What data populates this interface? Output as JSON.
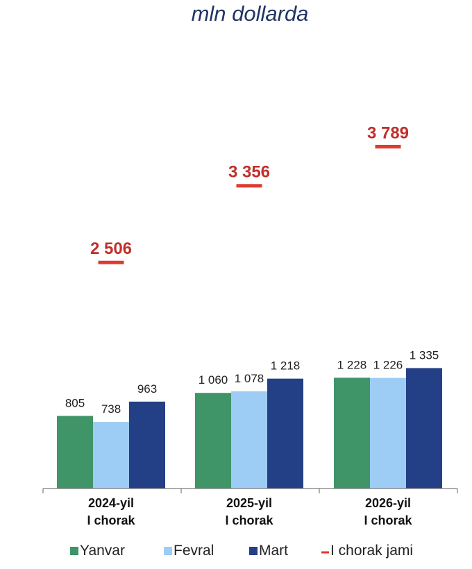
{
  "chart_data": {
    "type": "bar",
    "title": "mln dollarda",
    "categories": [
      [
        "2024-yil",
        "I chorak"
      ],
      [
        "2025-yil",
        "I chorak"
      ],
      [
        "2026-yil",
        "I chorak"
      ]
    ],
    "value_labels": [
      [
        "805",
        "738",
        "963"
      ],
      [
        "1 060",
        "1 078",
        "1 218"
      ],
      [
        "1 228",
        "1 226",
        "1 335"
      ]
    ],
    "series": [
      {
        "name": "Yanvar",
        "color": "#3f9468",
        "values": [
          805,
          1060,
          1228
        ]
      },
      {
        "name": "Fevral",
        "color": "#9dcdf5",
        "values": [
          738,
          1078,
          1226
        ]
      },
      {
        "name": "Mart",
        "color": "#233f85",
        "values": [
          963,
          1218,
          1335
        ]
      }
    ],
    "totals": {
      "name": "I chorak jami",
      "color": "#e03a2f",
      "values": [
        2506,
        3356,
        3789
      ],
      "labels": [
        "2 506",
        "3 356",
        "3 789"
      ]
    },
    "ylim": [
      0,
      3900
    ],
    "grid": false,
    "legend_position": "bottom",
    "xlabel": "",
    "ylabel": ""
  }
}
